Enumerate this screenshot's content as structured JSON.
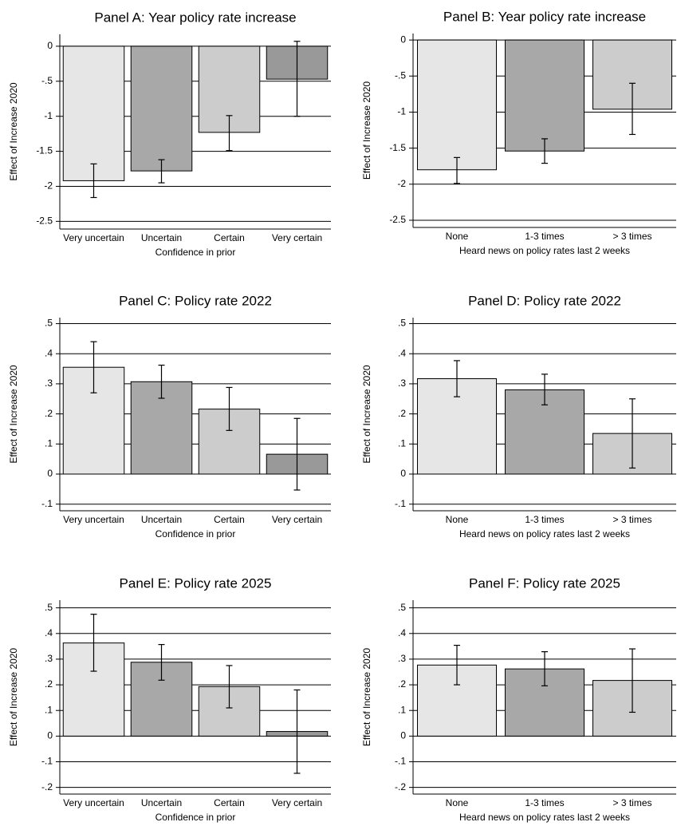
{
  "chart_data": [
    {
      "type": "bar",
      "title": "Panel A: Year policy rate increase",
      "xlabel": "Confidence in prior",
      "ylabel": "Effect of Increase 2020",
      "categories": [
        "Very uncertain",
        "Uncertain",
        "Certain",
        "Very certain"
      ],
      "values": [
        -1.92,
        -1.78,
        -1.23,
        -0.47
      ],
      "ci_low": [
        -2.16,
        -1.95,
        -1.49,
        -1.0
      ],
      "ci_high": [
        -1.68,
        -1.62,
        -0.99,
        0.07
      ],
      "colors": [
        "#e6e6e6",
        "#a8a8a8",
        "#cccccc",
        "#999999"
      ],
      "ylim": [
        -2.61,
        0.17
      ],
      "yticks": [
        0,
        {
          "value": -0.5,
          "label": "-.5"
        },
        -1,
        -1.5,
        -2,
        -2.5
      ],
      "grid": true
    },
    {
      "type": "bar",
      "title": "Panel B: Year policy rate increase",
      "xlabel": "Heard news on policy rates last 2 weeks",
      "ylabel": "Effect of Increase 2020",
      "categories": [
        "None",
        "1-3 times",
        "> 3 times"
      ],
      "values": [
        -1.8,
        -1.54,
        -0.96
      ],
      "ci_low": [
        -1.99,
        -1.71,
        -1.31
      ],
      "ci_high": [
        -1.63,
        -1.37,
        -0.6
      ],
      "colors": [
        "#e6e6e6",
        "#a8a8a8",
        "#cccccc"
      ],
      "ylim": [
        -2.6,
        0.09
      ],
      "yticks": [
        0,
        {
          "value": -0.5,
          "label": "-.5"
        },
        -1,
        -1.5,
        -2,
        -2.5
      ],
      "grid": true
    },
    {
      "type": "bar",
      "title": "Panel C: Policy rate 2022",
      "xlabel": "Confidence in prior",
      "ylabel": "Effect of Increase 2020",
      "categories": [
        "Very uncertain",
        "Uncertain",
        "Certain",
        "Very certain"
      ],
      "values": [
        0.355,
        0.307,
        0.216,
        0.066
      ],
      "ci_low": [
        0.27,
        0.252,
        0.145,
        -0.053
      ],
      "ci_high": [
        0.44,
        0.362,
        0.288,
        0.185
      ],
      "colors": [
        "#e6e6e6",
        "#a8a8a8",
        "#cccccc",
        "#999999"
      ],
      "ylim": [
        -0.122,
        0.52
      ],
      "yticks": [
        {
          "value": 0.5,
          "label": ".5"
        },
        {
          "value": 0.4,
          "label": ".4"
        },
        {
          "value": 0.3,
          "label": ".3"
        },
        {
          "value": 0.2,
          "label": ".2"
        },
        {
          "value": 0.1,
          "label": ".1"
        },
        0,
        {
          "value": -0.1,
          "label": "-.1"
        }
      ],
      "grid": true
    },
    {
      "type": "bar",
      "title": "Panel D: Policy rate 2022",
      "xlabel": "Heard news on policy rates last 2 weeks",
      "ylabel": "Effect of Increase 2020",
      "categories": [
        "None",
        "1-3 times",
        "> 3 times"
      ],
      "values": [
        0.317,
        0.28,
        0.135
      ],
      "ci_low": [
        0.257,
        0.23,
        0.02
      ],
      "ci_high": [
        0.377,
        0.332,
        0.25
      ],
      "colors": [
        "#e6e6e6",
        "#a8a8a8",
        "#cccccc"
      ],
      "ylim": [
        -0.122,
        0.52
      ],
      "yticks": [
        {
          "value": 0.5,
          "label": ".5"
        },
        {
          "value": 0.4,
          "label": ".4"
        },
        {
          "value": 0.3,
          "label": ".3"
        },
        {
          "value": 0.2,
          "label": ".2"
        },
        {
          "value": 0.1,
          "label": ".1"
        },
        0,
        {
          "value": -0.1,
          "label": "-.1"
        }
      ],
      "grid": true
    },
    {
      "type": "bar",
      "title": "Panel E: Policy rate 2025",
      "xlabel": "Confidence in prior",
      "ylabel": "Effect of Increase 2020",
      "categories": [
        "Very uncertain",
        "Uncertain",
        "Certain",
        "Very certain"
      ],
      "values": [
        0.363,
        0.288,
        0.193,
        0.018
      ],
      "ci_low": [
        0.253,
        0.218,
        0.11,
        -0.145
      ],
      "ci_high": [
        0.475,
        0.357,
        0.275,
        0.18
      ],
      "colors": [
        "#e6e6e6",
        "#a8a8a8",
        "#cccccc",
        "#999999"
      ],
      "ylim": [
        -0.226,
        0.53
      ],
      "yticks": [
        {
          "value": 0.5,
          "label": ".5"
        },
        {
          "value": 0.4,
          "label": ".4"
        },
        {
          "value": 0.3,
          "label": ".3"
        },
        {
          "value": 0.2,
          "label": ".2"
        },
        {
          "value": 0.1,
          "label": ".1"
        },
        0,
        {
          "value": -0.1,
          "label": "-.1"
        },
        {
          "value": -0.2,
          "label": "-.2"
        }
      ],
      "grid": true
    },
    {
      "type": "bar",
      "title": "Panel F: Policy rate 2025",
      "xlabel": "Heard news on policy rates last 2 weeks",
      "ylabel": "Effect of Increase 2020",
      "categories": [
        "None",
        "1-3 times",
        "> 3 times"
      ],
      "values": [
        0.277,
        0.262,
        0.217
      ],
      "ci_low": [
        0.2,
        0.196,
        0.093
      ],
      "ci_high": [
        0.354,
        0.329,
        0.34
      ],
      "colors": [
        "#e6e6e6",
        "#a8a8a8",
        "#cccccc"
      ],
      "ylim": [
        -0.226,
        0.53
      ],
      "yticks": [
        {
          "value": 0.5,
          "label": ".5"
        },
        {
          "value": 0.4,
          "label": ".4"
        },
        {
          "value": 0.3,
          "label": ".3"
        },
        {
          "value": 0.2,
          "label": ".2"
        },
        {
          "value": 0.1,
          "label": ".1"
        },
        0,
        {
          "value": -0.1,
          "label": "-.1"
        },
        {
          "value": -0.2,
          "label": "-.2"
        }
      ],
      "grid": true
    }
  ]
}
